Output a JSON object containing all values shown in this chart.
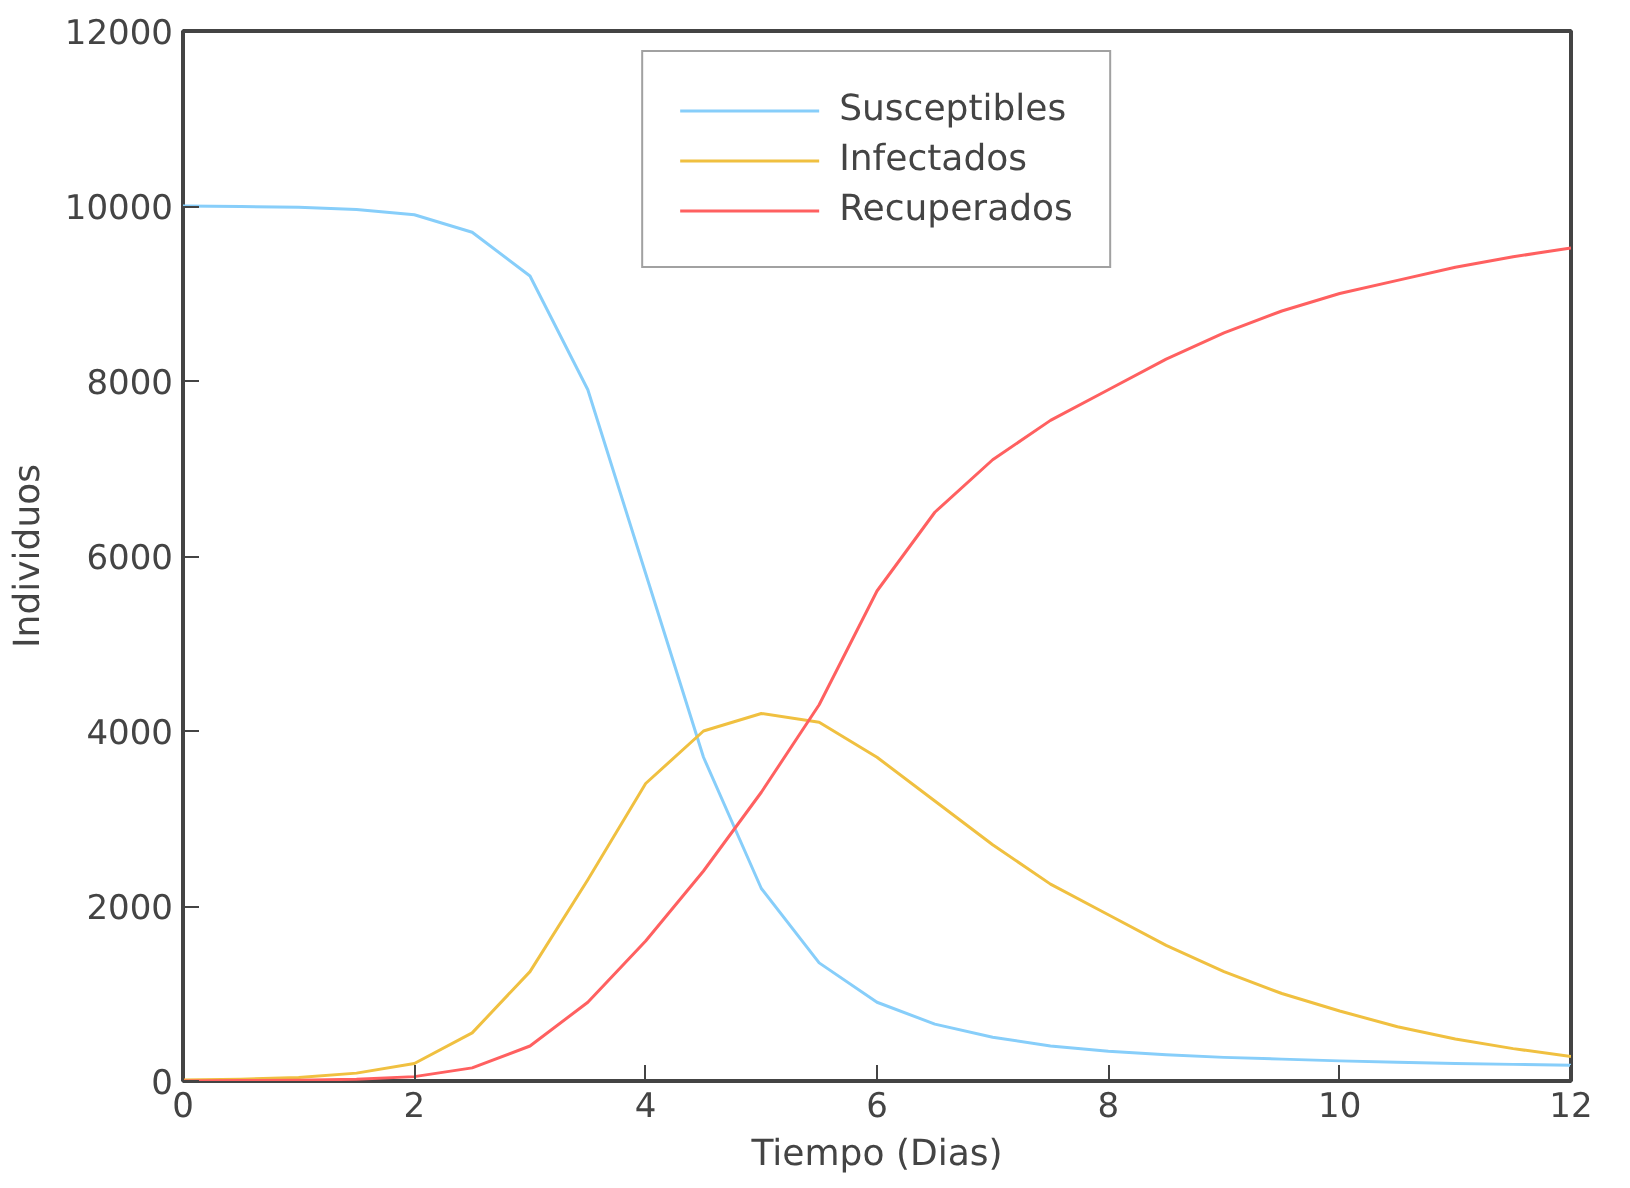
{
  "chart_data": {
    "type": "line",
    "xlabel": "Tiempo (Dias)",
    "ylabel": "Individuos",
    "x": [
      0,
      0.5,
      1,
      1.5,
      2,
      2.5,
      3,
      3.5,
      4,
      4.5,
      5,
      5.5,
      6,
      6.5,
      7,
      7.5,
      8,
      8.5,
      9,
      9.5,
      10,
      10.5,
      11,
      11.5,
      12
    ],
    "series": [
      {
        "name": "Susceptibles",
        "color": "#87cefa",
        "values": [
          10000,
          9995,
          9985,
          9960,
          9900,
          9700,
          9200,
          7900,
          5800,
          3700,
          2200,
          1350,
          900,
          650,
          500,
          400,
          340,
          300,
          270,
          250,
          230,
          215,
          200,
          190,
          180
        ]
      },
      {
        "name": "Infectados",
        "color": "#f0c040",
        "values": [
          10,
          20,
          40,
          90,
          200,
          550,
          1250,
          2300,
          3400,
          4000,
          4200,
          4100,
          3700,
          3200,
          2700,
          2250,
          1900,
          1550,
          1250,
          1000,
          800,
          620,
          480,
          370,
          280
        ]
      },
      {
        "name": "Recuperados",
        "color": "#ff6060",
        "values": [
          0,
          5,
          10,
          20,
          50,
          150,
          400,
          900,
          1600,
          2400,
          3300,
          4300,
          5600,
          6500,
          7100,
          7550,
          7900,
          8250,
          8550,
          8800,
          9000,
          9150,
          9300,
          9420,
          9520
        ]
      }
    ],
    "xlim": [
      0,
      12
    ],
    "ylim": [
      0,
      12000
    ],
    "xticks": [
      0,
      2,
      4,
      6,
      8,
      10,
      12
    ],
    "yticks": [
      0,
      2000,
      4000,
      6000,
      8000,
      10000,
      12000
    ],
    "grid": false,
    "legend": "top",
    "marker": "none",
    "line_style": "solid"
  }
}
